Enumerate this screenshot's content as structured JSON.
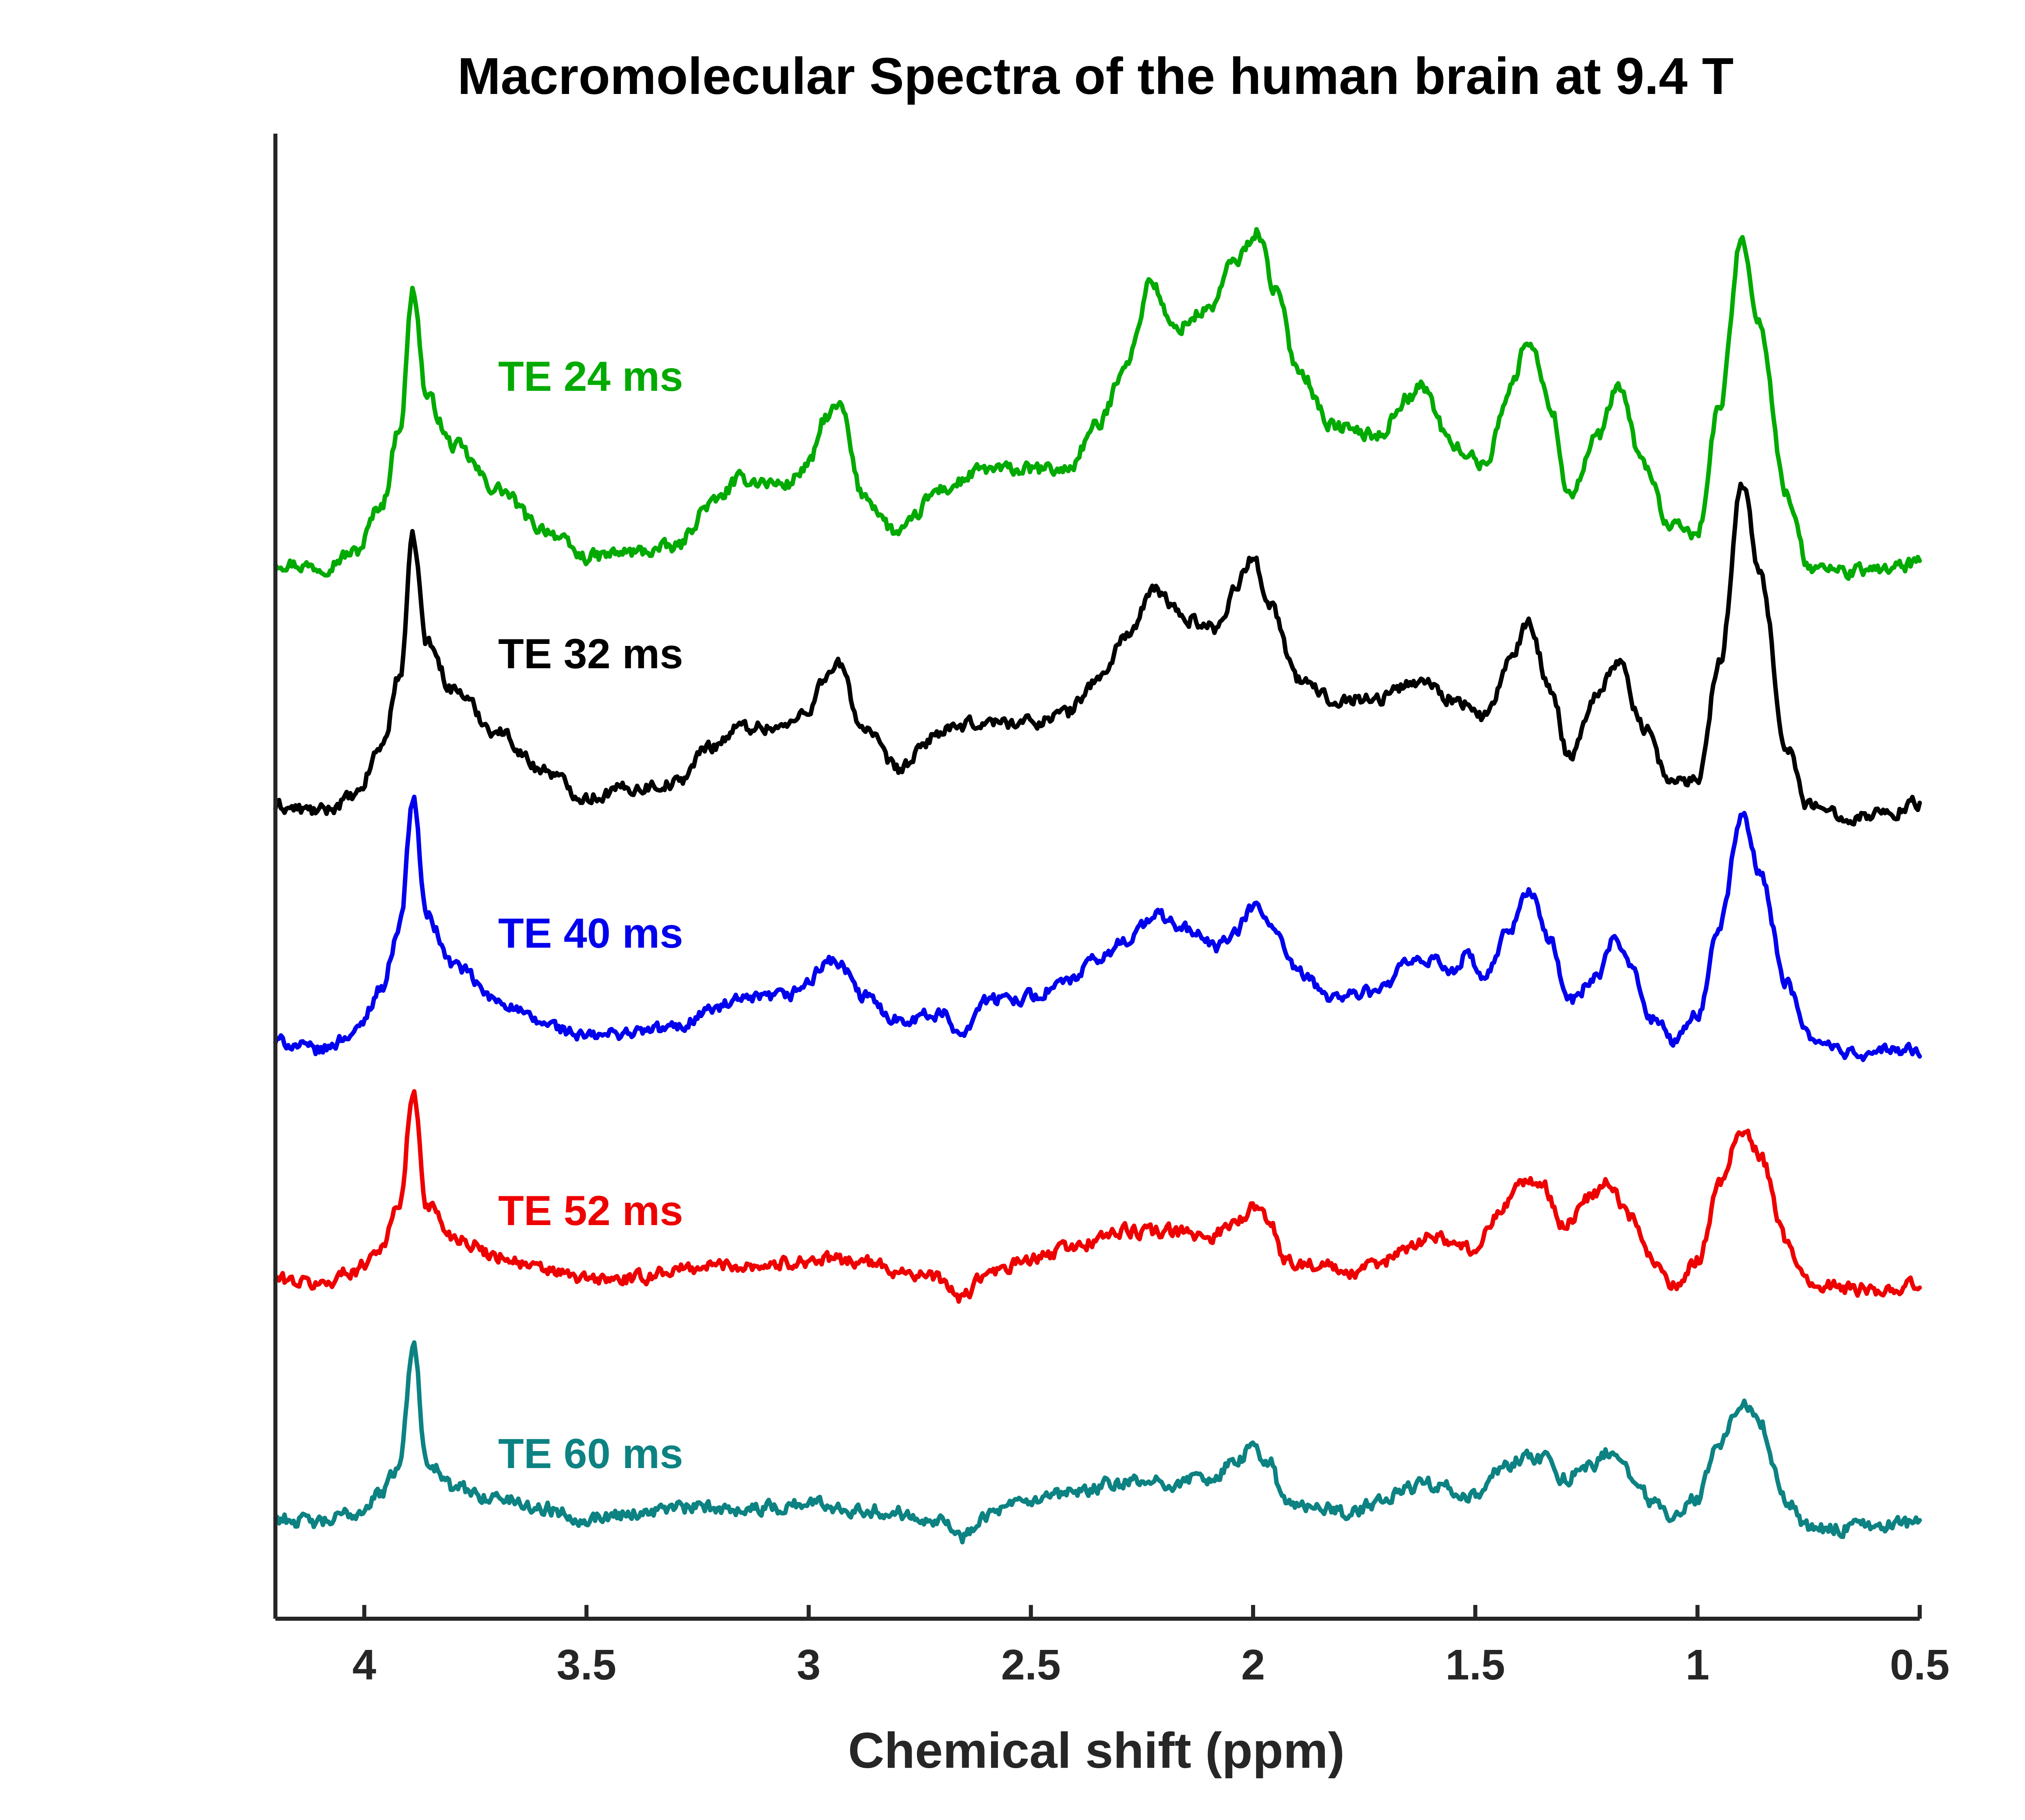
{
  "chart_data": {
    "type": "line",
    "title": "Macromolecular Spectra of the human brain at 9.4 T",
    "xlabel": "Chemical shift (ppm)",
    "ylabel": "",
    "xlim": [
      4.2,
      0.5
    ],
    "x_reversed": true,
    "y_axis_ticks": false,
    "grid": false,
    "x_ticks": [
      4,
      3.5,
      3,
      2.5,
      2,
      1.5,
      1,
      0.5
    ],
    "x_tick_labels": [
      "4",
      "3.5",
      "3",
      "2.5",
      "2",
      "1.5",
      "1",
      "0.5"
    ],
    "series": [
      {
        "name": "TE 24 ms",
        "color": "#00aa00",
        "noise": 0.012,
        "points": [
          [
            4.2,
            0.06
          ],
          [
            4.1,
            0.05
          ],
          [
            4.02,
            0.08
          ],
          [
            3.96,
            0.18
          ],
          [
            3.92,
            0.34
          ],
          [
            3.89,
            0.62
          ],
          [
            3.86,
            0.4
          ],
          [
            3.8,
            0.3
          ],
          [
            3.7,
            0.21
          ],
          [
            3.6,
            0.13
          ],
          [
            3.5,
            0.07
          ],
          [
            3.4,
            0.08
          ],
          [
            3.3,
            0.09
          ],
          [
            3.22,
            0.18
          ],
          [
            3.15,
            0.23
          ],
          [
            3.05,
            0.22
          ],
          [
            3.0,
            0.26
          ],
          [
            2.96,
            0.36
          ],
          [
            2.93,
            0.38
          ],
          [
            2.88,
            0.2
          ],
          [
            2.8,
            0.12
          ],
          [
            2.7,
            0.21
          ],
          [
            2.6,
            0.25
          ],
          [
            2.5,
            0.25
          ],
          [
            2.42,
            0.25
          ],
          [
            2.35,
            0.34
          ],
          [
            2.28,
            0.48
          ],
          [
            2.23,
            0.64
          ],
          [
            2.18,
            0.54
          ],
          [
            2.1,
            0.58
          ],
          [
            2.04,
            0.68
          ],
          [
            1.99,
            0.74
          ],
          [
            1.95,
            0.62
          ],
          [
            1.9,
            0.46
          ],
          [
            1.82,
            0.34
          ],
          [
            1.72,
            0.32
          ],
          [
            1.65,
            0.4
          ],
          [
            1.62,
            0.42
          ],
          [
            1.55,
            0.3
          ],
          [
            1.48,
            0.26
          ],
          [
            1.42,
            0.42
          ],
          [
            1.38,
            0.52
          ],
          [
            1.33,
            0.38
          ],
          [
            1.29,
            0.2
          ],
          [
            1.22,
            0.32
          ],
          [
            1.18,
            0.42
          ],
          [
            1.12,
            0.26
          ],
          [
            1.06,
            0.13
          ],
          [
            1.0,
            0.12
          ],
          [
            0.95,
            0.38
          ],
          [
            0.9,
            0.73
          ],
          [
            0.86,
            0.55
          ],
          [
            0.8,
            0.2
          ],
          [
            0.75,
            0.05
          ],
          [
            0.65,
            0.04
          ],
          [
            0.55,
            0.05
          ],
          [
            0.5,
            0.06
          ]
        ]
      },
      {
        "name": "TE 32 ms",
        "color": "#000000",
        "noise": 0.012,
        "points": [
          [
            4.2,
            0.05
          ],
          [
            4.1,
            0.04
          ],
          [
            4.02,
            0.07
          ],
          [
            3.96,
            0.18
          ],
          [
            3.92,
            0.33
          ],
          [
            3.89,
            0.62
          ],
          [
            3.86,
            0.4
          ],
          [
            3.8,
            0.3
          ],
          [
            3.7,
            0.21
          ],
          [
            3.6,
            0.13
          ],
          [
            3.5,
            0.07
          ],
          [
            3.4,
            0.09
          ],
          [
            3.3,
            0.1
          ],
          [
            3.22,
            0.18
          ],
          [
            3.15,
            0.22
          ],
          [
            3.05,
            0.22
          ],
          [
            3.0,
            0.26
          ],
          [
            2.96,
            0.33
          ],
          [
            2.93,
            0.35
          ],
          [
            2.88,
            0.22
          ],
          [
            2.8,
            0.13
          ],
          [
            2.7,
            0.21
          ],
          [
            2.6,
            0.23
          ],
          [
            2.5,
            0.23
          ],
          [
            2.42,
            0.25
          ],
          [
            2.35,
            0.32
          ],
          [
            2.28,
            0.42
          ],
          [
            2.22,
            0.51
          ],
          [
            2.15,
            0.45
          ],
          [
            2.08,
            0.43
          ],
          [
            2.04,
            0.52
          ],
          [
            2.0,
            0.58
          ],
          [
            1.96,
            0.48
          ],
          [
            1.9,
            0.32
          ],
          [
            1.82,
            0.28
          ],
          [
            1.72,
            0.28
          ],
          [
            1.65,
            0.31
          ],
          [
            1.62,
            0.32
          ],
          [
            1.55,
            0.28
          ],
          [
            1.48,
            0.24
          ],
          [
            1.42,
            0.36
          ],
          [
            1.38,
            0.44
          ],
          [
            1.33,
            0.3
          ],
          [
            1.29,
            0.16
          ],
          [
            1.22,
            0.3
          ],
          [
            1.18,
            0.36
          ],
          [
            1.12,
            0.22
          ],
          [
            1.06,
            0.1
          ],
          [
            1.0,
            0.11
          ],
          [
            0.95,
            0.36
          ],
          [
            0.9,
            0.74
          ],
          [
            0.86,
            0.55
          ],
          [
            0.8,
            0.18
          ],
          [
            0.75,
            0.05
          ],
          [
            0.65,
            0.03
          ],
          [
            0.55,
            0.04
          ],
          [
            0.5,
            0.06
          ]
        ]
      },
      {
        "name": "TE 40 ms",
        "color": "#0000ee",
        "noise": 0.012,
        "points": [
          [
            4.2,
            0.08
          ],
          [
            4.1,
            0.06
          ],
          [
            4.02,
            0.1
          ],
          [
            3.96,
            0.2
          ],
          [
            3.92,
            0.34
          ],
          [
            3.89,
            0.62
          ],
          [
            3.86,
            0.36
          ],
          [
            3.8,
            0.25
          ],
          [
            3.7,
            0.17
          ],
          [
            3.6,
            0.12
          ],
          [
            3.5,
            0.09
          ],
          [
            3.4,
            0.1
          ],
          [
            3.3,
            0.11
          ],
          [
            3.22,
            0.15
          ],
          [
            3.15,
            0.17
          ],
          [
            3.05,
            0.18
          ],
          [
            3.0,
            0.21
          ],
          [
            2.96,
            0.26
          ],
          [
            2.93,
            0.25
          ],
          [
            2.88,
            0.18
          ],
          [
            2.8,
            0.13
          ],
          [
            2.7,
            0.14
          ],
          [
            2.66,
            0.1
          ],
          [
            2.6,
            0.17
          ],
          [
            2.5,
            0.18
          ],
          [
            2.42,
            0.21
          ],
          [
            2.35,
            0.26
          ],
          [
            2.28,
            0.31
          ],
          [
            2.22,
            0.36
          ],
          [
            2.15,
            0.33
          ],
          [
            2.08,
            0.29
          ],
          [
            2.04,
            0.32
          ],
          [
            2.0,
            0.38
          ],
          [
            1.96,
            0.34
          ],
          [
            1.9,
            0.23
          ],
          [
            1.82,
            0.18
          ],
          [
            1.72,
            0.19
          ],
          [
            1.65,
            0.25
          ],
          [
            1.6,
            0.26
          ],
          [
            1.55,
            0.24
          ],
          [
            1.52,
            0.27
          ],
          [
            1.48,
            0.22
          ],
          [
            1.42,
            0.33
          ],
          [
            1.38,
            0.42
          ],
          [
            1.33,
            0.3
          ],
          [
            1.29,
            0.17
          ],
          [
            1.22,
            0.23
          ],
          [
            1.19,
            0.3
          ],
          [
            1.15,
            0.25
          ],
          [
            1.1,
            0.13
          ],
          [
            1.05,
            0.08
          ],
          [
            1.0,
            0.14
          ],
          [
            0.95,
            0.34
          ],
          [
            0.9,
            0.58
          ],
          [
            0.86,
            0.46
          ],
          [
            0.8,
            0.21
          ],
          [
            0.75,
            0.09
          ],
          [
            0.65,
            0.05
          ],
          [
            0.55,
            0.06
          ],
          [
            0.5,
            0.06
          ]
        ]
      },
      {
        "name": "TE 52 ms",
        "color": "#ee0000",
        "noise": 0.012,
        "points": [
          [
            4.2,
            0.06
          ],
          [
            4.1,
            0.05
          ],
          [
            4.02,
            0.08
          ],
          [
            3.96,
            0.13
          ],
          [
            3.92,
            0.22
          ],
          [
            3.89,
            0.45
          ],
          [
            3.86,
            0.22
          ],
          [
            3.8,
            0.15
          ],
          [
            3.7,
            0.11
          ],
          [
            3.6,
            0.08
          ],
          [
            3.5,
            0.06
          ],
          [
            3.4,
            0.06
          ],
          [
            3.3,
            0.08
          ],
          [
            3.2,
            0.09
          ],
          [
            3.1,
            0.09
          ],
          [
            3.0,
            0.1
          ],
          [
            2.9,
            0.1
          ],
          [
            2.8,
            0.08
          ],
          [
            2.7,
            0.06
          ],
          [
            2.66,
            0.02
          ],
          [
            2.6,
            0.07
          ],
          [
            2.5,
            0.1
          ],
          [
            2.4,
            0.13
          ],
          [
            2.3,
            0.16
          ],
          [
            2.2,
            0.16
          ],
          [
            2.1,
            0.15
          ],
          [
            2.04,
            0.18
          ],
          [
            2.0,
            0.21
          ],
          [
            1.96,
            0.18
          ],
          [
            1.93,
            0.1
          ],
          [
            1.85,
            0.09
          ],
          [
            1.78,
            0.07
          ],
          [
            1.72,
            0.09
          ],
          [
            1.65,
            0.13
          ],
          [
            1.6,
            0.15
          ],
          [
            1.55,
            0.14
          ],
          [
            1.5,
            0.12
          ],
          [
            1.45,
            0.2
          ],
          [
            1.4,
            0.26
          ],
          [
            1.35,
            0.26
          ],
          [
            1.3,
            0.17
          ],
          [
            1.25,
            0.23
          ],
          [
            1.2,
            0.26
          ],
          [
            1.15,
            0.19
          ],
          [
            1.1,
            0.1
          ],
          [
            1.05,
            0.05
          ],
          [
            1.0,
            0.1
          ],
          [
            0.95,
            0.26
          ],
          [
            0.9,
            0.38
          ],
          [
            0.86,
            0.32
          ],
          [
            0.8,
            0.14
          ],
          [
            0.75,
            0.05
          ],
          [
            0.65,
            0.04
          ],
          [
            0.55,
            0.04
          ],
          [
            0.5,
            0.05
          ]
        ]
      },
      {
        "name": "TE 60 ms",
        "color": "#0d8282",
        "noise": 0.012,
        "points": [
          [
            4.2,
            0.05
          ],
          [
            4.1,
            0.04
          ],
          [
            4.02,
            0.06
          ],
          [
            3.96,
            0.1
          ],
          [
            3.92,
            0.16
          ],
          [
            3.89,
            0.4
          ],
          [
            3.86,
            0.17
          ],
          [
            3.8,
            0.11
          ],
          [
            3.7,
            0.09
          ],
          [
            3.6,
            0.07
          ],
          [
            3.5,
            0.05
          ],
          [
            3.4,
            0.06
          ],
          [
            3.3,
            0.07
          ],
          [
            3.2,
            0.07
          ],
          [
            3.1,
            0.07
          ],
          [
            3.0,
            0.08
          ],
          [
            2.9,
            0.07
          ],
          [
            2.8,
            0.06
          ],
          [
            2.7,
            0.05
          ],
          [
            2.66,
            0.01
          ],
          [
            2.6,
            0.06
          ],
          [
            2.5,
            0.08
          ],
          [
            2.4,
            0.1
          ],
          [
            2.3,
            0.12
          ],
          [
            2.2,
            0.12
          ],
          [
            2.1,
            0.13
          ],
          [
            2.04,
            0.16
          ],
          [
            2.0,
            0.19
          ],
          [
            1.96,
            0.16
          ],
          [
            1.93,
            0.08
          ],
          [
            1.85,
            0.07
          ],
          [
            1.78,
            0.06
          ],
          [
            1.72,
            0.08
          ],
          [
            1.65,
            0.11
          ],
          [
            1.6,
            0.12
          ],
          [
            1.55,
            0.11
          ],
          [
            1.5,
            0.09
          ],
          [
            1.45,
            0.14
          ],
          [
            1.4,
            0.17
          ],
          [
            1.35,
            0.17
          ],
          [
            1.3,
            0.13
          ],
          [
            1.25,
            0.15
          ],
          [
            1.2,
            0.18
          ],
          [
            1.15,
            0.14
          ],
          [
            1.1,
            0.08
          ],
          [
            1.05,
            0.05
          ],
          [
            1.0,
            0.09
          ],
          [
            0.95,
            0.2
          ],
          [
            0.9,
            0.28
          ],
          [
            0.86,
            0.24
          ],
          [
            0.8,
            0.09
          ],
          [
            0.75,
            0.03
          ],
          [
            0.65,
            0.03
          ],
          [
            0.55,
            0.04
          ],
          [
            0.5,
            0.04
          ]
        ]
      }
    ]
  }
}
